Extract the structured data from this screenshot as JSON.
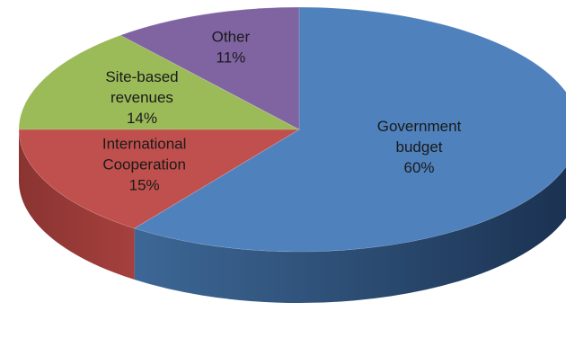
{
  "chart_data": {
    "type": "pie",
    "style": "3d",
    "title": "",
    "slices": [
      {
        "label": "Government budget",
        "label_lines": [
          "Government",
          "budget"
        ],
        "value": 60,
        "value_label": "60%",
        "color": "#4f81bd"
      },
      {
        "label": "International Cooperation",
        "label_lines": [
          "International",
          "Cooperation"
        ],
        "value": 15,
        "value_label": "15%",
        "color": "#c0504d"
      },
      {
        "label": "Site-based revenues",
        "label_lines": [
          "Site-based",
          "revenues"
        ],
        "value": 14,
        "value_label": "14%",
        "color": "#9bbb59"
      },
      {
        "label": "Other",
        "label_lines": [
          "Other"
        ],
        "value": 11,
        "value_label": "11%",
        "color": "#8064a2"
      }
    ]
  }
}
